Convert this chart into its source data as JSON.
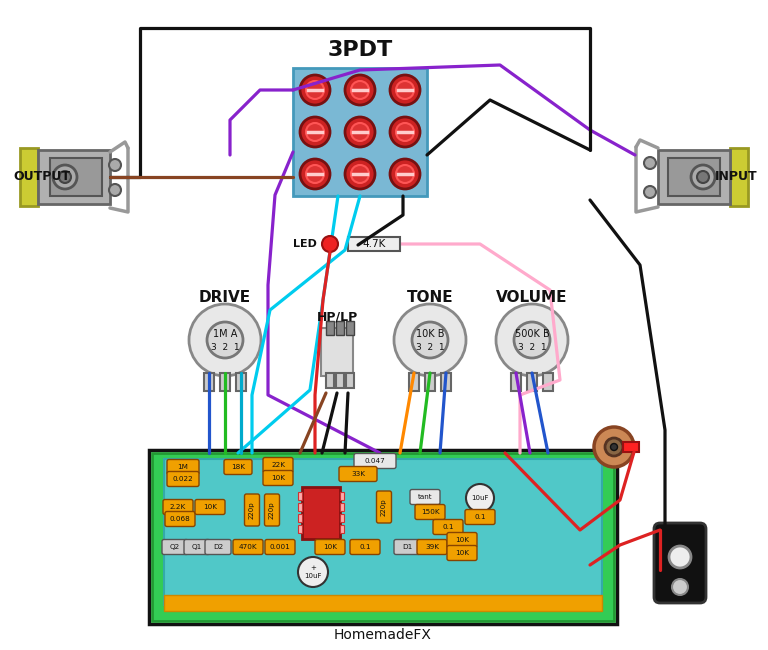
{
  "title": "3PDT",
  "subtitle": "HomemadeFX",
  "bg_color": "#ffffff",
  "output_label": "OUTPUT",
  "input_label": "INPUT",
  "led_label": "LED",
  "resistor_label": "4.7K",
  "drive_label": "DRIVE",
  "tone_label": "TONE",
  "volume_label": "VOLUME",
  "hplp_label": "HP/LP",
  "drive_val": "1M A",
  "tone_val": "10K B",
  "volume_val": "500K B",
  "switch_bg": "#7ab8d4",
  "pcb_bg": "#50c8c8",
  "pcb_green": "#33cc55",
  "jack_yellow": "#cccc33",
  "jack_gray": "#aaaaaa",
  "led_red": "#ee2222",
  "res_gray": "#dddddd",
  "ic_red": "#cc2222",
  "lug_red": "#dd2222",
  "wire_black": "#111111",
  "wire_red": "#dd2222",
  "wire_cyan": "#00ccee",
  "wire_blue": "#2255cc",
  "wire_green": "#22bb22",
  "wire_purple": "#8822cc",
  "wire_brown": "#884422",
  "wire_orange": "#ff8800",
  "wire_pink": "#ffaacc",
  "wire_darkred": "#bb1111",
  "comp_orange": "#f0a000",
  "comp_gray": "#dddddd",
  "clamp_gray": "#999999",
  "bat_black": "#111111"
}
